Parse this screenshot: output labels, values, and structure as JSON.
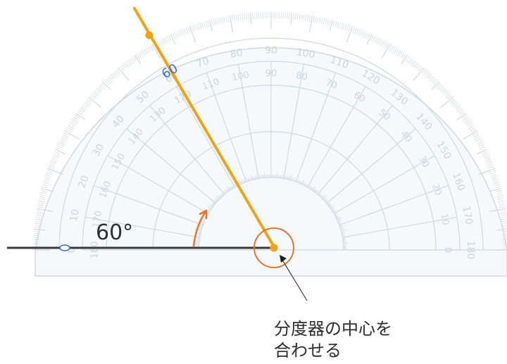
{
  "protractor": {
    "name": "protractor",
    "outer_scale_labels": [
      "0",
      "10",
      "20",
      "30",
      "40",
      "50",
      "60",
      "70",
      "80",
      "90",
      "100",
      "110",
      "120",
      "130",
      "140",
      "150",
      "160",
      "170",
      "180"
    ],
    "inner_scale_labels": [
      "180",
      "170",
      "160",
      "150",
      "140",
      "130",
      "120",
      "110",
      "100",
      "90",
      "80",
      "70",
      "60",
      "50",
      "40",
      "30",
      "20",
      "10",
      "0"
    ],
    "line_color": "#cdd9e4",
    "highlight_color": "#3a6fc4"
  },
  "angle": {
    "degrees": 60,
    "label": "60°",
    "arc_color": "#e8742a",
    "ray_color": "#f2a213",
    "baseline_color": "#3a3a3a"
  },
  "markers": {
    "zero_mark": "0",
    "sixty_mark": "60"
  },
  "callout": {
    "line1": "分度器の中心を",
    "line2": "合わせる",
    "circle_color": "#e8742a"
  }
}
